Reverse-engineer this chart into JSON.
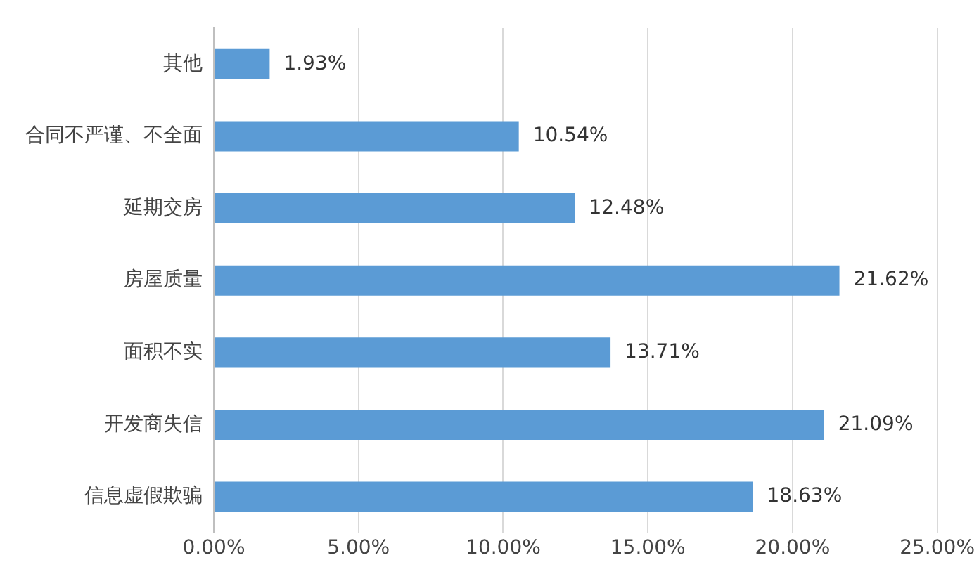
{
  "chart_data": {
    "type": "bar",
    "orientation": "horizontal",
    "categories": [
      "其他",
      "合同不严谨、不全面",
      "延期交房",
      "房屋质量",
      "面积不实",
      "开发商失信",
      "信息虚假欺骗"
    ],
    "values": [
      1.93,
      10.54,
      12.48,
      21.62,
      13.71,
      21.09,
      18.63
    ],
    "value_labels": [
      "1.93%",
      "10.54%",
      "12.48%",
      "21.62%",
      "13.71%",
      "21.09%",
      "18.63%"
    ],
    "color": "#5b9bd5",
    "xlim": [
      0,
      25
    ],
    "xticks": [
      {
        "value": 0,
        "label": "0.00%"
      },
      {
        "value": 5,
        "label": "5.00%"
      },
      {
        "value": 10,
        "label": "10.00%"
      },
      {
        "value": 15,
        "label": "15.00%"
      },
      {
        "value": 20,
        "label": "20.00%"
      },
      {
        "value": 25,
        "label": "25.00%"
      }
    ],
    "grid": "x",
    "legend": false
  }
}
